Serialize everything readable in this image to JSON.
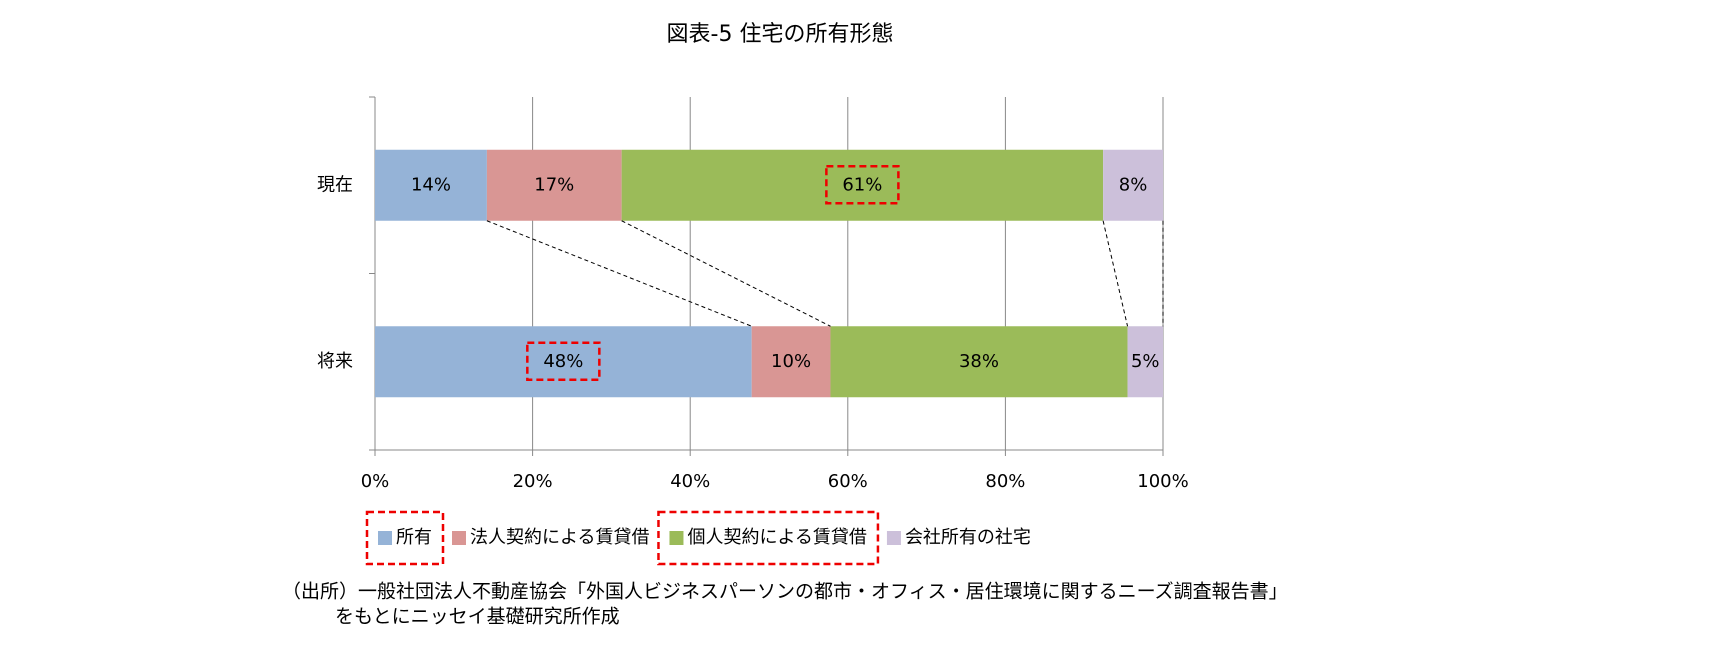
{
  "chart_data": {
    "type": "bar",
    "orientation": "horizontal",
    "stacked": true,
    "title": "図表-5  住宅の所有形態",
    "categories": [
      "現在",
      "将来"
    ],
    "series": [
      {
        "name": "所有",
        "color": "#95b3d7",
        "values": [
          14.2,
          47.8
        ],
        "value_labels": [
          "14%",
          "48%"
        ]
      },
      {
        "name": "法人契約による賃貸借",
        "color": "#d99694",
        "values": [
          17.1,
          10
        ],
        "value_labels": [
          "17%",
          "10%"
        ]
      },
      {
        "name": "個人契約による賃貸借",
        "color": "#9bbb59",
        "values": [
          61.1,
          37.7
        ],
        "value_labels": [
          "61%",
          "38%"
        ]
      },
      {
        "name": "会社所有の社宅",
        "color": "#ccc0da",
        "values": [
          7.6,
          4.5
        ],
        "value_labels": [
          "8%",
          "5%"
        ]
      }
    ],
    "xlim": [
      0,
      100
    ],
    "xticks": [
      {
        "value": 0,
        "label": "0%"
      },
      {
        "value": 20,
        "label": "20%"
      },
      {
        "value": 40,
        "label": "40%"
      },
      {
        "value": 60,
        "label": "60%"
      },
      {
        "value": 80,
        "label": "80%"
      },
      {
        "value": 100,
        "label": "100%"
      }
    ],
    "grid": true,
    "legend": "bottom",
    "note": [
      "（出所）一般社団法人不動産協会「外国人ビジネスパーソンの都市・オフィス・居住環境に関するニーズ調査報告書」",
      "をもとにニッセイ基礎研究所作成"
    ]
  }
}
